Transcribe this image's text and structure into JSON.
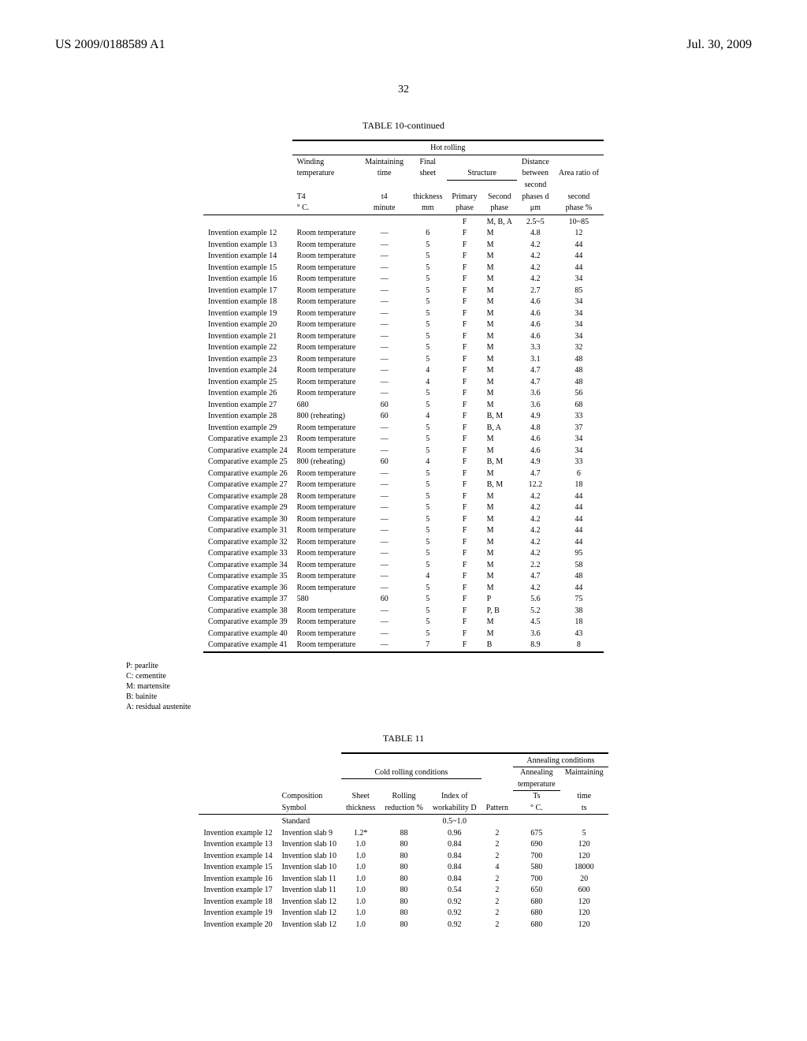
{
  "header": {
    "doc_number": "US 2009/0188589 A1",
    "date": "Jul. 30, 2009"
  },
  "page_number": "32",
  "table10": {
    "caption": "TABLE 10-continued",
    "group_header": "Hot rolling",
    "columns": {
      "c0": "",
      "c1a": "Winding",
      "c1b": "temperature",
      "c1c": "T4",
      "c1d": "° C.",
      "c2a": "Maintaining",
      "c2b": "time",
      "c2c": "t4",
      "c2d": "minute",
      "c3a": "Final",
      "c3b": "sheet",
      "c3c": "thickness",
      "c3d": "mm",
      "c45a": "Structure",
      "c4c": "Primary",
      "c4d": "phase",
      "c5c": "Second",
      "c5d": "phase",
      "c6a": "Distance",
      "c6b": "between",
      "c6c": "second",
      "c6d": "phases d",
      "c6e": "μm",
      "c7a": "Area ratio of",
      "c7c": "second",
      "c7d": "phase %"
    },
    "std_row": {
      "c4": "F",
      "c5": "M, B, A",
      "c6": "2.5~5",
      "c7": "10~85"
    },
    "rows": [
      {
        "c0": "Invention example 12",
        "c1": "Room temperature",
        "c2": "—",
        "c3": "6",
        "c4": "F",
        "c5": "M",
        "c6": "4.8",
        "c7": "12"
      },
      {
        "c0": "Invention example 13",
        "c1": "Room temperature",
        "c2": "—",
        "c3": "5",
        "c4": "F",
        "c5": "M",
        "c6": "4.2",
        "c7": "44"
      },
      {
        "c0": "Invention example 14",
        "c1": "Room temperature",
        "c2": "—",
        "c3": "5",
        "c4": "F",
        "c5": "M",
        "c6": "4.2",
        "c7": "44"
      },
      {
        "c0": "Invention example 15",
        "c1": "Room temperature",
        "c2": "—",
        "c3": "5",
        "c4": "F",
        "c5": "M",
        "c6": "4.2",
        "c7": "44"
      },
      {
        "c0": "Invention example 16",
        "c1": "Room temperature",
        "c2": "—",
        "c3": "5",
        "c4": "F",
        "c5": "M",
        "c6": "4.2",
        "c7": "34"
      },
      {
        "c0": "Invention example 17",
        "c1": "Room temperature",
        "c2": "—",
        "c3": "5",
        "c4": "F",
        "c5": "M",
        "c6": "2.7",
        "c7": "85"
      },
      {
        "c0": "Invention example 18",
        "c1": "Room temperature",
        "c2": "—",
        "c3": "5",
        "c4": "F",
        "c5": "M",
        "c6": "4.6",
        "c7": "34"
      },
      {
        "c0": "Invention example 19",
        "c1": "Room temperature",
        "c2": "—",
        "c3": "5",
        "c4": "F",
        "c5": "M",
        "c6": "4.6",
        "c7": "34"
      },
      {
        "c0": "Invention example 20",
        "c1": "Room temperature",
        "c2": "—",
        "c3": "5",
        "c4": "F",
        "c5": "M",
        "c6": "4.6",
        "c7": "34"
      },
      {
        "c0": "Invention example 21",
        "c1": "Room temperature",
        "c2": "—",
        "c3": "5",
        "c4": "F",
        "c5": "M",
        "c6": "4.6",
        "c7": "34"
      },
      {
        "c0": "Invention example 22",
        "c1": "Room temperature",
        "c2": "—",
        "c3": "5",
        "c4": "F",
        "c5": "M",
        "c6": "3.3",
        "c7": "32"
      },
      {
        "c0": "Invention example 23",
        "c1": "Room temperature",
        "c2": "—",
        "c3": "5",
        "c4": "F",
        "c5": "M",
        "c6": "3.1",
        "c7": "48"
      },
      {
        "c0": "Invention example 24",
        "c1": "Room temperature",
        "c2": "—",
        "c3": "4",
        "c4": "F",
        "c5": "M",
        "c6": "4.7",
        "c7": "48"
      },
      {
        "c0": "Invention example 25",
        "c1": "Room temperature",
        "c2": "—",
        "c3": "4",
        "c4": "F",
        "c5": "M",
        "c6": "4.7",
        "c7": "48"
      },
      {
        "c0": "Invention example 26",
        "c1": "Room temperature",
        "c2": "—",
        "c3": "5",
        "c4": "F",
        "c5": "M",
        "c6": "3.6",
        "c7": "56"
      },
      {
        "c0": "Invention example 27",
        "c1": "680",
        "c2": "60",
        "c3": "5",
        "c4": "F",
        "c5": "M",
        "c6": "3.6",
        "c7": "68"
      },
      {
        "c0": "Invention example 28",
        "c1": "800 (reheating)",
        "c2": "60",
        "c3": "4",
        "c4": "F",
        "c5": "B, M",
        "c6": "4.9",
        "c7": "33"
      },
      {
        "c0": "Invention example 29",
        "c1": "Room temperature",
        "c2": "—",
        "c3": "5",
        "c4": "F",
        "c5": "B, A",
        "c6": "4.8",
        "c7": "37"
      },
      {
        "c0": "Comparative example 23",
        "c1": "Room temperature",
        "c2": "—",
        "c3": "5",
        "c4": "F",
        "c5": "M",
        "c6": "4.6",
        "c7": "34"
      },
      {
        "c0": "Comparative example 24",
        "c1": "Room temperature",
        "c2": "—",
        "c3": "5",
        "c4": "F",
        "c5": "M",
        "c6": "4.6",
        "c7": "34"
      },
      {
        "c0": "Comparative example 25",
        "c1": "800 (reheating)",
        "c2": "60",
        "c3": "4",
        "c4": "F",
        "c5": "B, M",
        "c6": "4.9",
        "c7": "33"
      },
      {
        "c0": "Comparative example 26",
        "c1": "Room temperature",
        "c2": "—",
        "c3": "5",
        "c4": "F",
        "c5": "M",
        "c6": "4.7",
        "c7": "6"
      },
      {
        "c0": "Comparative example 27",
        "c1": "Room temperature",
        "c2": "—",
        "c3": "5",
        "c4": "F",
        "c5": "B, M",
        "c6": "12.2",
        "c7": "18"
      },
      {
        "c0": "Comparative example 28",
        "c1": "Room temperature",
        "c2": "—",
        "c3": "5",
        "c4": "F",
        "c5": "M",
        "c6": "4.2",
        "c7": "44"
      },
      {
        "c0": "Comparative example 29",
        "c1": "Room temperature",
        "c2": "—",
        "c3": "5",
        "c4": "F",
        "c5": "M",
        "c6": "4.2",
        "c7": "44"
      },
      {
        "c0": "Comparative example 30",
        "c1": "Room temperature",
        "c2": "—",
        "c3": "5",
        "c4": "F",
        "c5": "M",
        "c6": "4.2",
        "c7": "44"
      },
      {
        "c0": "Comparative example 31",
        "c1": "Room temperature",
        "c2": "—",
        "c3": "5",
        "c4": "F",
        "c5": "M",
        "c6": "4.2",
        "c7": "44"
      },
      {
        "c0": "Comparative example 32",
        "c1": "Room temperature",
        "c2": "—",
        "c3": "5",
        "c4": "F",
        "c5": "M",
        "c6": "4.2",
        "c7": "44"
      },
      {
        "c0": "Comparative example 33",
        "c1": "Room temperature",
        "c2": "—",
        "c3": "5",
        "c4": "F",
        "c5": "M",
        "c6": "4.2",
        "c7": "95"
      },
      {
        "c0": "Comparative example 34",
        "c1": "Room temperature",
        "c2": "—",
        "c3": "5",
        "c4": "F",
        "c5": "M",
        "c6": "2.2",
        "c7": "58"
      },
      {
        "c0": "Comparative example 35",
        "c1": "Room temperature",
        "c2": "—",
        "c3": "4",
        "c4": "F",
        "c5": "M",
        "c6": "4.7",
        "c7": "48"
      },
      {
        "c0": "Comparative example 36",
        "c1": "Room temperature",
        "c2": "—",
        "c3": "5",
        "c4": "F",
        "c5": "M",
        "c6": "4.2",
        "c7": "44"
      },
      {
        "c0": "Comparative example 37",
        "c1": "580",
        "c2": "60",
        "c3": "5",
        "c4": "F",
        "c5": "P",
        "c6": "5.6",
        "c7": "75"
      },
      {
        "c0": "Comparative example 38",
        "c1": "Room temperature",
        "c2": "—",
        "c3": "5",
        "c4": "F",
        "c5": "P, B",
        "c6": "5.2",
        "c7": "38"
      },
      {
        "c0": "Comparative example 39",
        "c1": "Room temperature",
        "c2": "—",
        "c3": "5",
        "c4": "F",
        "c5": "M",
        "c6": "4.5",
        "c7": "18"
      },
      {
        "c0": "Comparative example 40",
        "c1": "Room temperature",
        "c2": "—",
        "c3": "5",
        "c4": "F",
        "c5": "M",
        "c6": "3.6",
        "c7": "43"
      },
      {
        "c0": "Comparative example 41",
        "c1": "Room temperature",
        "c2": "—",
        "c3": "7",
        "c4": "F",
        "c5": "B",
        "c6": "8.9",
        "c7": "8"
      }
    ],
    "legend": [
      "P: pearlite",
      "C: cementite",
      "M: martensite",
      "B: bainite",
      "A: residual austenite"
    ]
  },
  "table11": {
    "caption": "TABLE 11",
    "group_cold": "Cold rolling conditions",
    "group_ann": "Annealing conditions",
    "columns": {
      "c0": "",
      "c1a": "Composition",
      "c1b": "Symbol",
      "c2a": "Sheet",
      "c2b": "thickness",
      "c3a": "Rolling",
      "c3b": "reduction %",
      "c4a": "Index of",
      "c4b": "workability D",
      "c5a": "Pattern",
      "c6a": "Annealing",
      "c6b": "temperature",
      "c6c": "Ts",
      "c6d": "° C.",
      "c7a": "Maintaining",
      "c7c": "time",
      "c7d": "ts"
    },
    "std_row": {
      "c1": "Standard",
      "c4": "0.5~1.0"
    },
    "rows": [
      {
        "c0": "Invention example 12",
        "c1": "Invention slab 9",
        "c2": "1.2*",
        "c3": "88",
        "c4": "0.96",
        "c5": "2",
        "c6": "675",
        "c7": "5"
      },
      {
        "c0": "Invention example 13",
        "c1": "Invention slab 10",
        "c2": "1.0",
        "c3": "80",
        "c4": "0.84",
        "c5": "2",
        "c6": "690",
        "c7": "120"
      },
      {
        "c0": "Invention example 14",
        "c1": "Invention slab 10",
        "c2": "1.0",
        "c3": "80",
        "c4": "0.84",
        "c5": "2",
        "c6": "700",
        "c7": "120"
      },
      {
        "c0": "Invention example 15",
        "c1": "Invention slab 10",
        "c2": "1.0",
        "c3": "80",
        "c4": "0.84",
        "c5": "4",
        "c6": "580",
        "c7": "18000"
      },
      {
        "c0": "Invention example 16",
        "c1": "Invention slab 11",
        "c2": "1.0",
        "c3": "80",
        "c4": "0.84",
        "c5": "2",
        "c6": "700",
        "c7": "20"
      },
      {
        "c0": "Invention example 17",
        "c1": "Invention slab 11",
        "c2": "1.0",
        "c3": "80",
        "c4": "0.54",
        "c5": "2",
        "c6": "650",
        "c7": "600"
      },
      {
        "c0": "Invention example 18",
        "c1": "Invention slab 12",
        "c2": "1.0",
        "c3": "80",
        "c4": "0.92",
        "c5": "2",
        "c6": "680",
        "c7": "120"
      },
      {
        "c0": "Invention example 19",
        "c1": "Invention slab 12",
        "c2": "1.0",
        "c3": "80",
        "c4": "0.92",
        "c5": "2",
        "c6": "680",
        "c7": "120"
      },
      {
        "c0": "Invention example 20",
        "c1": "Invention slab 12",
        "c2": "1.0",
        "c3": "80",
        "c4": "0.92",
        "c5": "2",
        "c6": "680",
        "c7": "120"
      }
    ]
  }
}
